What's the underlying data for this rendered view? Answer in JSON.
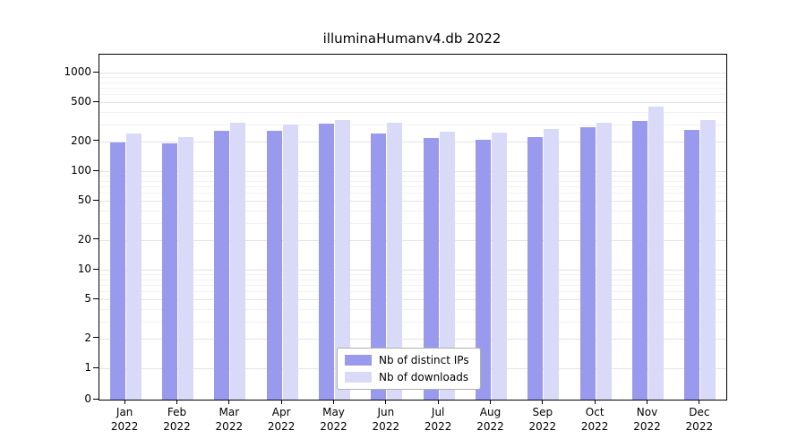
{
  "title": "illuminaHumanv4.db 2022",
  "colors": {
    "background": "#ffffff",
    "axis": "#000000",
    "grid_major": "#e4e4e4",
    "grid_minor": "#f2f2f2",
    "legend_border": "#b0b0b0"
  },
  "chart_data": {
    "type": "bar",
    "title": "illuminaHumanv4.db 2022",
    "categories": [
      "Jan",
      "Feb",
      "Mar",
      "Apr",
      "May",
      "Jun",
      "Jul",
      "Aug",
      "Sep",
      "Oct",
      "Nov",
      "Dec"
    ],
    "year_label": "2022",
    "series": [
      {
        "name": "Nb of distinct IPs",
        "color": "#9999ee",
        "values": [
          196,
          191,
          259,
          257,
          303,
          239,
          215,
          206,
          221,
          278,
          321,
          261
        ]
      },
      {
        "name": "Nb of downloads",
        "color": "#d9d9f8",
        "values": [
          241,
          223,
          307,
          299,
          331,
          309,
          251,
          245,
          267,
          311,
          456,
          330
        ]
      }
    ],
    "y_ticks": [
      0,
      1,
      2,
      5,
      10,
      20,
      50,
      100,
      200,
      500,
      1000
    ],
    "ylim": [
      0,
      1000
    ],
    "y_scale": "log",
    "grid": "on",
    "legend_position": "bottom-center-inside",
    "xlabel": "",
    "ylabel": ""
  }
}
